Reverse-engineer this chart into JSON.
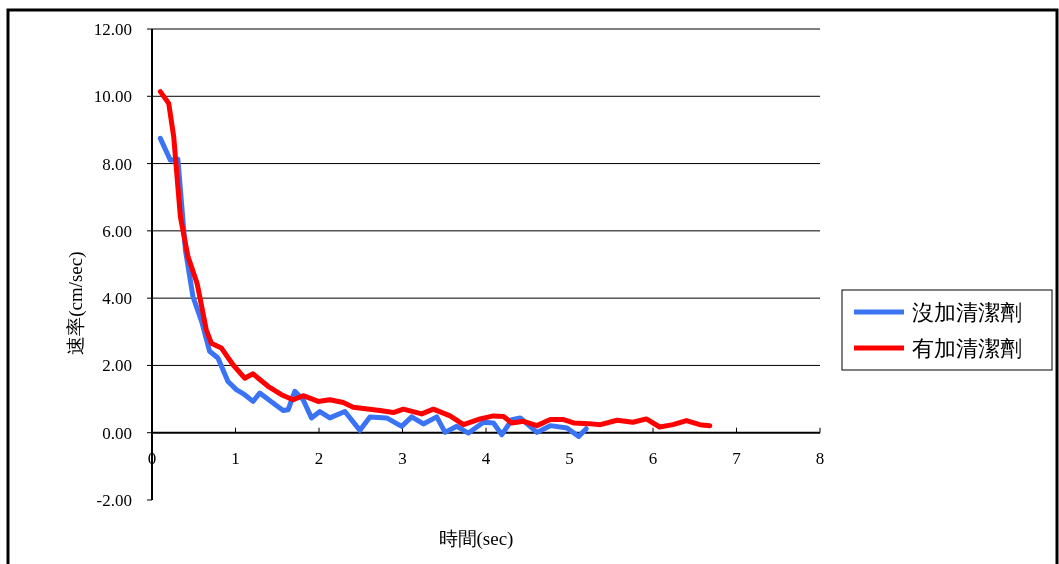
{
  "chart_data": {
    "type": "line",
    "xlabel": "時間(sec)",
    "ylabel": "速率(cm/sec)",
    "xlim": [
      0,
      8
    ],
    "ylim": [
      -2,
      12
    ],
    "xticks": [
      0,
      1,
      2,
      3,
      4,
      5,
      6,
      7,
      8
    ],
    "yticks": [
      {
        "value": -2,
        "label": "-2.00"
      },
      {
        "value": 0,
        "label": "0.00"
      },
      {
        "value": 2,
        "label": "2.00"
      },
      {
        "value": 4,
        "label": "4.00"
      },
      {
        "value": 6,
        "label": "6.00"
      },
      {
        "value": 8,
        "label": "8.00"
      },
      {
        "value": 10,
        "label": "10.00"
      },
      {
        "value": 12,
        "label": "12.00"
      }
    ],
    "grid": "y",
    "legend": "right",
    "line_style": "solid",
    "series": [
      {
        "name": "沒加清潔劑",
        "color": "#3b73f5",
        "x": [
          0.1,
          0.22,
          0.31,
          0.4,
          0.49,
          0.6,
          0.69,
          0.79,
          0.91,
          1.01,
          1.11,
          1.21,
          1.29,
          1.45,
          1.57,
          1.63,
          1.71,
          1.81,
          1.91,
          2.01,
          2.13,
          2.31,
          2.49,
          2.61,
          2.81,
          2.99,
          3.11,
          3.25,
          3.41,
          3.51,
          3.65,
          3.79,
          3.97,
          4.09,
          4.19,
          4.31,
          4.41,
          4.61,
          4.77,
          4.97,
          5.11,
          5.2
        ],
        "values": [
          8.75,
          8.1,
          8.13,
          5.43,
          4.05,
          3.26,
          2.42,
          2.22,
          1.52,
          1.28,
          1.13,
          0.93,
          1.18,
          0.88,
          0.66,
          0.68,
          1.23,
          0.98,
          0.44,
          0.63,
          0.44,
          0.63,
          0.07,
          0.47,
          0.44,
          0.19,
          0.47,
          0.26,
          0.47,
          0.01,
          0.19,
          -0.01,
          0.31,
          0.29,
          -0.06,
          0.39,
          0.44,
          0.01,
          0.21,
          0.14,
          -0.11,
          0.12
        ]
      },
      {
        "name": "有加清潔劑",
        "color": "#ff0000",
        "x": [
          0.1,
          0.2,
          0.26,
          0.34,
          0.43,
          0.54,
          0.65,
          0.71,
          0.83,
          0.97,
          1.11,
          1.21,
          1.39,
          1.55,
          1.69,
          1.81,
          1.99,
          2.13,
          2.29,
          2.41,
          2.73,
          2.89,
          3.01,
          3.23,
          3.37,
          3.57,
          3.73,
          3.93,
          4.09,
          4.21,
          4.31,
          4.45,
          4.61,
          4.77,
          4.93,
          5.05,
          5.23,
          5.37,
          5.57,
          5.76,
          5.92,
          6.08,
          6.24,
          6.4,
          6.56,
          6.68
        ],
        "values": [
          10.14,
          9.79,
          8.8,
          6.42,
          5.24,
          4.44,
          3.06,
          2.66,
          2.52,
          2.02,
          1.62,
          1.75,
          1.38,
          1.13,
          0.98,
          1.1,
          0.93,
          0.98,
          0.9,
          0.76,
          0.66,
          0.6,
          0.7,
          0.56,
          0.7,
          0.5,
          0.24,
          0.41,
          0.5,
          0.48,
          0.29,
          0.34,
          0.21,
          0.39,
          0.39,
          0.29,
          0.27,
          0.24,
          0.37,
          0.31,
          0.41,
          0.17,
          0.24,
          0.36,
          0.24,
          0.21
        ]
      }
    ]
  }
}
